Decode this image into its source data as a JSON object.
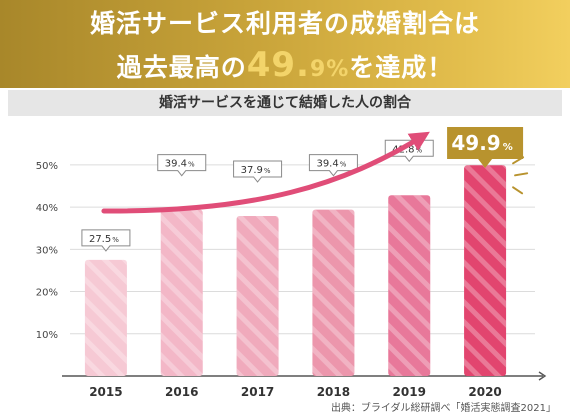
{
  "headline": {
    "line1": "婚活サービス利用者の成婚割合は",
    "line2_prefix": "過去最高の",
    "line2_number": "49.",
    "line2_small": "9%",
    "line2_suffix": "を達成！"
  },
  "subtitle": "婚活サービスを通じて結婚した人の割合",
  "source": "出典：ブライダル総研調べ「婚活実態調査2021」",
  "colors": {
    "banner_start": "#a8872a",
    "banner_end": "#f2cf5e",
    "arrow": "#e04d78",
    "highlight_box": "#b8932e",
    "bar_palest": "#f6c9d4",
    "bar_deepest": "#e2456f"
  },
  "chart_data": {
    "type": "bar",
    "title": "婚活サービスを通じて結婚した人の割合",
    "categories": [
      "2015",
      "2016",
      "2017",
      "2018",
      "2019",
      "2020"
    ],
    "values": [
      27.5,
      39.4,
      37.9,
      39.4,
      42.8,
      49.9
    ],
    "value_labels": [
      "27.5",
      "39.4",
      "37.9",
      "39.4",
      "42.8",
      "49.9"
    ],
    "unit": "%",
    "ylim": [
      0,
      54
    ],
    "yticks": [
      10,
      20,
      30,
      40,
      50
    ],
    "ytick_labels": [
      "10%",
      "20%",
      "30%",
      "40%",
      "50%"
    ],
    "bar_colors": [
      "#f6c9d4",
      "#f3b7c7",
      "#f0aabc",
      "#ec96ac",
      "#e8789a",
      "#e2456f"
    ],
    "highlight_category": "2020",
    "grid": true,
    "xlabel": "",
    "ylabel": ""
  }
}
